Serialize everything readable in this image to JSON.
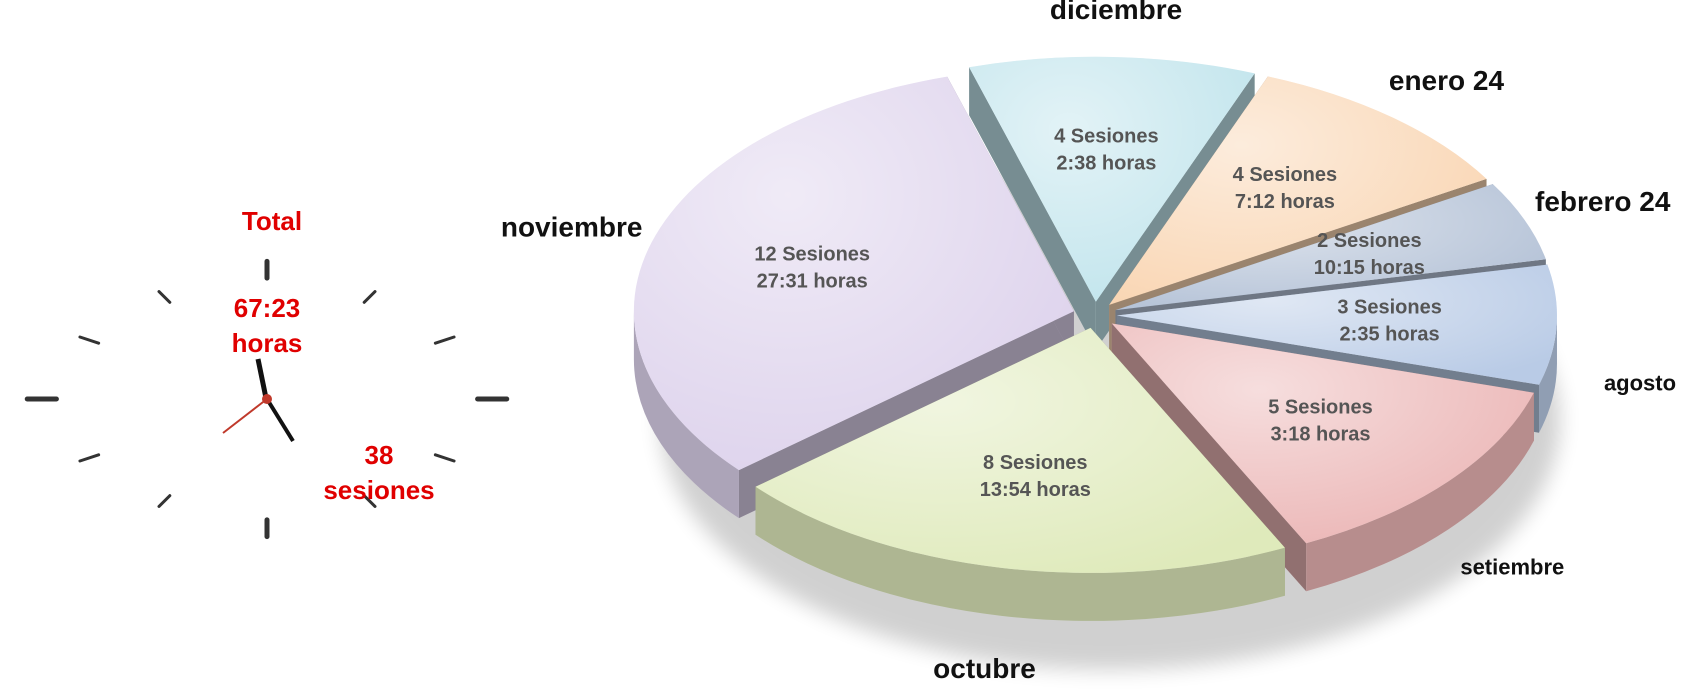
{
  "chart_data": {
    "type": "pie",
    "categories": [
      "agosto",
      "setiembre",
      "octubre",
      "noviembre",
      "diciembre",
      "enero 24",
      "febrero 24"
    ],
    "values": [
      3,
      5,
      8,
      12,
      4,
      4,
      2
    ],
    "value_labels": [
      "3 Sesiones",
      "5 Sesiones",
      "8 Sesiones",
      "12 Sesiones",
      "4 Sesiones",
      "4 Sesiones",
      "2 Sesiones"
    ],
    "hours": [
      "2:35 horas",
      "3:18 horas",
      "13:54 horas",
      "27:31 horas",
      "2:38 horas",
      "7:12 horas",
      "10:15 horas"
    ],
    "colors": [
      "#b9cbe6",
      "#ebb5b5",
      "#dfeabb",
      "#ddd2ec",
      "#c0e4ec",
      "#f9d5b2",
      "#b3c1d6"
    ],
    "total": {
      "title": "Total",
      "hours": [
        "67:23",
        "horas"
      ],
      "sessions": [
        "38",
        "sesiones"
      ]
    }
  }
}
